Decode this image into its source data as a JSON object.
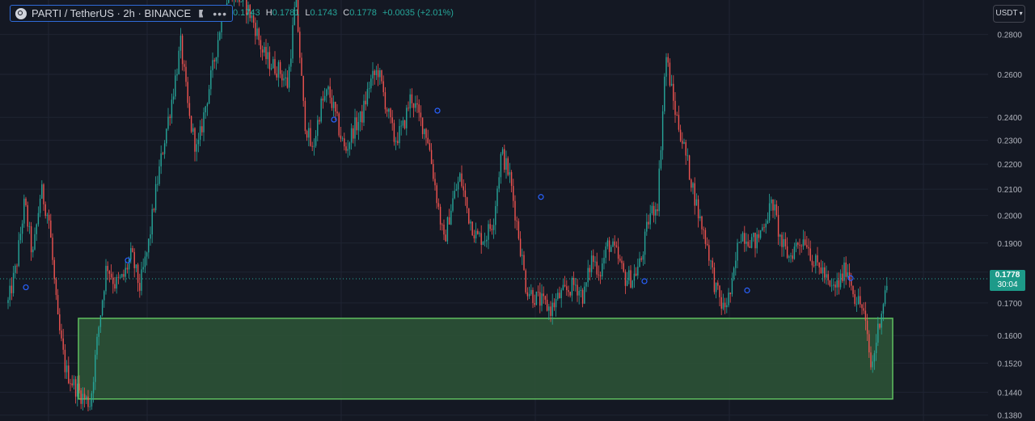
{
  "header": {
    "symbol_title": "PARTI / TetherUS · 2h · BINANCE",
    "more_label": "•••",
    "ohlc": {
      "open_value": "0.1743",
      "high_key": "H",
      "high_value": "0.1781",
      "low_key": "L",
      "low_value": "0.1743",
      "close_key": "C",
      "close_value": "0.1778",
      "change": "+0.0035 (+2.01%)"
    },
    "currency": "USDT"
  },
  "price_tag": {
    "price": "0.1778",
    "countdown": "30:04"
  },
  "colors": {
    "background": "#141823",
    "up": "#26a69a",
    "down": "#ef5350",
    "grid": "#1f2433",
    "zone_fill": "#2b5236",
    "zone_border": "#5fbf5f",
    "marker": "#2962ff"
  },
  "chart_data": {
    "type": "line",
    "title": "PARTI / TetherUS · 2h · BINANCE",
    "scale": "log",
    "ylim": [
      0.1365,
      0.2985
    ],
    "y_ticks": [
      "0.2800",
      "0.2600",
      "0.2400",
      "0.2300",
      "0.2200",
      "0.2100",
      "0.2000",
      "0.1900",
      "0.1800",
      "0.1700",
      "0.1600",
      "0.1520",
      "0.1440",
      "0.1380"
    ],
    "grid": true,
    "current_price": 0.1778,
    "support_zone": {
      "top": 0.1652,
      "bottom": 0.1422
    },
    "series": [
      {
        "values": [
          0.17,
          0.182,
          0.205,
          0.185,
          0.21,
          0.198,
          0.165,
          0.15,
          0.146,
          0.143,
          0.141,
          0.162,
          0.183,
          0.176,
          0.178,
          0.186,
          0.175,
          0.188,
          0.21,
          0.23,
          0.25,
          0.275,
          0.24,
          0.225,
          0.245,
          0.265,
          0.29,
          0.305,
          0.3,
          0.295,
          0.285,
          0.27,
          0.265,
          0.262,
          0.255,
          0.3,
          0.24,
          0.225,
          0.245,
          0.252,
          0.238,
          0.225,
          0.235,
          0.24,
          0.256,
          0.262,
          0.245,
          0.23,
          0.235,
          0.25,
          0.24,
          0.232,
          0.21,
          0.19,
          0.205,
          0.215,
          0.2,
          0.192,
          0.192,
          0.198,
          0.225,
          0.215,
          0.195,
          0.175,
          0.172,
          0.17,
          0.168,
          0.172,
          0.174,
          0.176,
          0.172,
          0.185,
          0.18,
          0.19,
          0.186,
          0.178,
          0.178,
          0.184,
          0.2,
          0.205,
          0.27,
          0.245,
          0.23,
          0.215,
          0.2,
          0.19,
          0.175,
          0.168,
          0.174,
          0.194,
          0.192,
          0.19,
          0.198,
          0.205,
          0.19,
          0.185,
          0.19,
          0.192,
          0.183,
          0.181,
          0.174,
          0.176,
          0.182,
          0.172,
          0.168,
          0.15,
          0.165,
          0.1778
        ]
      }
    ],
    "markers": [
      0.175,
      0.184,
      0.239,
      0.243,
      0.207,
      0.177,
      0.174,
      0.178
    ]
  }
}
